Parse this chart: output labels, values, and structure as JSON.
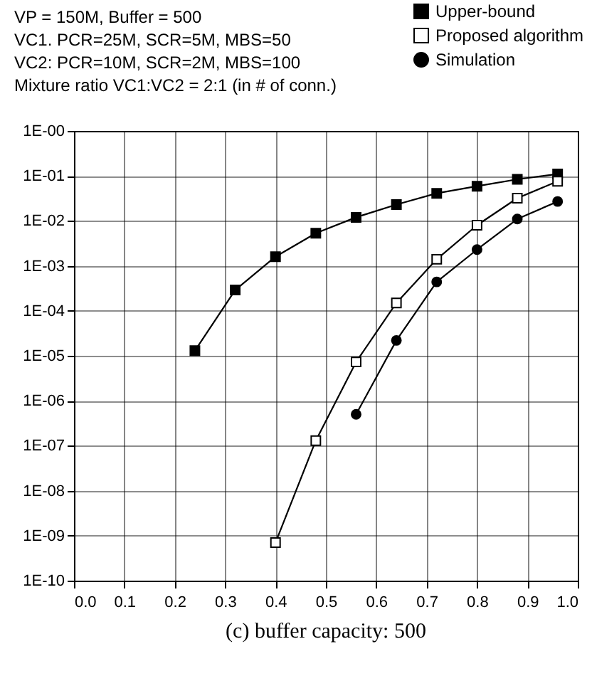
{
  "chart_data": {
    "type": "line",
    "title": "(c) buffer capacity: 500",
    "annotations": [
      "VP = 150M, Buffer = 500",
      "VC1. PCR=25M, SCR=5M, MBS=50",
      "VC2: PCR=10M, SCR=2M, MBS=100",
      "Mixture ratio VC1:VC2 = 2:1 (in # of conn.)"
    ],
    "x": [
      0.24,
      0.32,
      0.4,
      0.48,
      0.56,
      0.64,
      0.72,
      0.8,
      0.88,
      0.96
    ],
    "series": [
      {
        "name": "Upper-bound",
        "color": "#000000",
        "marker": "square",
        "values": [
          1.3e-05,
          0.00029,
          0.0016,
          0.0053,
          0.012,
          0.023,
          0.041,
          0.059,
          0.084,
          0.11
        ]
      },
      {
        "name": "Proposed algorithm",
        "color": "#000000",
        "marker": "square",
        "values": [
          null,
          null,
          7e-10,
          1.3e-07,
          7.3e-06,
          0.00015,
          0.0014,
          0.008,
          0.032,
          0.076
        ]
      },
      {
        "name": "Simulation",
        "color": "#000000",
        "marker": "circle",
        "values": [
          null,
          null,
          null,
          null,
          5e-07,
          2.2e-05,
          0.00044,
          0.0023,
          0.011,
          0.027
        ]
      }
    ],
    "log": "y",
    "xlim": [
      0,
      1
    ],
    "xticks": [
      {
        "value": 0,
        "label": "0.0"
      },
      0.1,
      0.2,
      0.3,
      0.4,
      0.5,
      0.6,
      0.7,
      0.8,
      0.9,
      {
        "value": 1,
        "label": "1.0"
      }
    ],
    "ylim": [
      1e-10,
      1
    ],
    "yticks": [
      {
        "value": 1e-10,
        "label": "1E-10"
      },
      {
        "value": 1e-09,
        "label": "1E-09"
      },
      {
        "value": 1e-08,
        "label": "1E-08"
      },
      {
        "value": 1e-07,
        "label": "1E-07"
      },
      {
        "value": 1e-06,
        "label": "1E-06"
      },
      {
        "value": 1e-05,
        "label": "1E-05"
      },
      {
        "value": 0.0001,
        "label": "1E-04"
      },
      {
        "value": 0.001,
        "label": "1E-03"
      },
      {
        "value": 0.01,
        "label": "1E-02"
      },
      {
        "value": 0.1,
        "label": "1E-01"
      },
      {
        "value": 1,
        "label": "1E-00"
      }
    ],
    "grid": true,
    "legend": "top right",
    "line_style": "solid"
  }
}
